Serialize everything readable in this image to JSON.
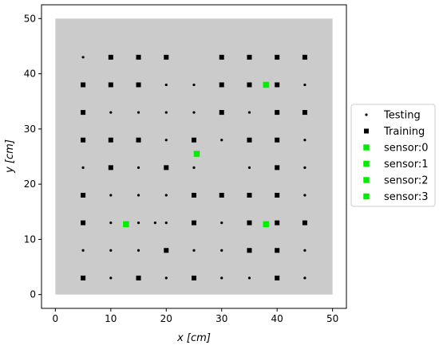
{
  "chart_data": {
    "type": "scatter",
    "xlabel": "x [cm]",
    "ylabel": "y [cm]",
    "xlim": [
      -2.5,
      52.5
    ],
    "ylim": [
      -2.5,
      52.5
    ],
    "xticks": [
      "0",
      "10",
      "20",
      "30",
      "40",
      "50"
    ],
    "yticks": [
      "0",
      "10",
      "20",
      "30",
      "40",
      "50"
    ],
    "background_region": {
      "x": [
        0,
        50
      ],
      "y": [
        0,
        50
      ],
      "color": "#cbcbcb"
    },
    "legend_position": "right",
    "series": [
      {
        "name": "Testing",
        "marker": "small-dot",
        "color": "#000000",
        "points": [
          [
            5,
            43
          ],
          [
            20,
            38
          ],
          [
            25,
            38
          ],
          [
            45,
            38
          ],
          [
            10,
            33
          ],
          [
            15,
            33
          ],
          [
            20,
            33
          ],
          [
            25,
            33
          ],
          [
            35,
            33
          ],
          [
            20,
            28
          ],
          [
            30,
            28
          ],
          [
            45,
            28
          ],
          [
            5,
            23
          ],
          [
            15,
            23
          ],
          [
            25,
            23
          ],
          [
            35,
            23
          ],
          [
            45,
            23
          ],
          [
            10,
            18
          ],
          [
            15,
            18
          ],
          [
            20,
            18
          ],
          [
            45,
            18
          ],
          [
            10,
            13
          ],
          [
            15,
            13
          ],
          [
            18,
            13
          ],
          [
            20,
            13
          ],
          [
            30,
            13
          ],
          [
            5,
            8
          ],
          [
            10,
            8
          ],
          [
            15,
            8
          ],
          [
            25,
            8
          ],
          [
            30,
            8
          ],
          [
            45,
            8
          ],
          [
            10,
            3
          ],
          [
            20,
            3
          ],
          [
            30,
            3
          ],
          [
            35,
            3
          ],
          [
            45,
            3
          ]
        ]
      },
      {
        "name": "Training",
        "marker": "square",
        "color": "#000000",
        "points": [
          [
            10,
            43
          ],
          [
            15,
            43
          ],
          [
            20,
            43
          ],
          [
            30,
            43
          ],
          [
            35,
            43
          ],
          [
            40,
            43
          ],
          [
            45,
            43
          ],
          [
            5,
            38
          ],
          [
            10,
            38
          ],
          [
            15,
            38
          ],
          [
            30,
            38
          ],
          [
            35,
            38
          ],
          [
            40,
            38
          ],
          [
            5,
            33
          ],
          [
            30,
            33
          ],
          [
            40,
            33
          ],
          [
            45,
            33
          ],
          [
            5,
            28
          ],
          [
            10,
            28
          ],
          [
            15,
            28
          ],
          [
            25,
            28
          ],
          [
            35,
            28
          ],
          [
            40,
            28
          ],
          [
            10,
            23
          ],
          [
            20,
            23
          ],
          [
            40,
            23
          ],
          [
            5,
            18
          ],
          [
            25,
            18
          ],
          [
            30,
            18
          ],
          [
            35,
            18
          ],
          [
            40,
            18
          ],
          [
            5,
            13
          ],
          [
            25,
            13
          ],
          [
            35,
            13
          ],
          [
            40,
            13
          ],
          [
            45,
            13
          ],
          [
            20,
            8
          ],
          [
            35,
            8
          ],
          [
            40,
            8
          ],
          [
            5,
            3
          ],
          [
            15,
            3
          ],
          [
            25,
            3
          ],
          [
            40,
            3
          ]
        ]
      },
      {
        "name": "sensor:0",
        "marker": "square",
        "color": "#00ee00",
        "points": [
          [
            25.5,
            25.5
          ]
        ]
      },
      {
        "name": "sensor:1",
        "marker": "square",
        "color": "#00ee00",
        "points": [
          [
            38,
            38
          ]
        ]
      },
      {
        "name": "sensor:2",
        "marker": "square",
        "color": "#00ee00",
        "points": [
          [
            12.75,
            12.75
          ]
        ]
      },
      {
        "name": "sensor:3",
        "marker": "square",
        "color": "#00ee00",
        "points": [
          [
            38,
            12.75
          ]
        ]
      }
    ]
  }
}
